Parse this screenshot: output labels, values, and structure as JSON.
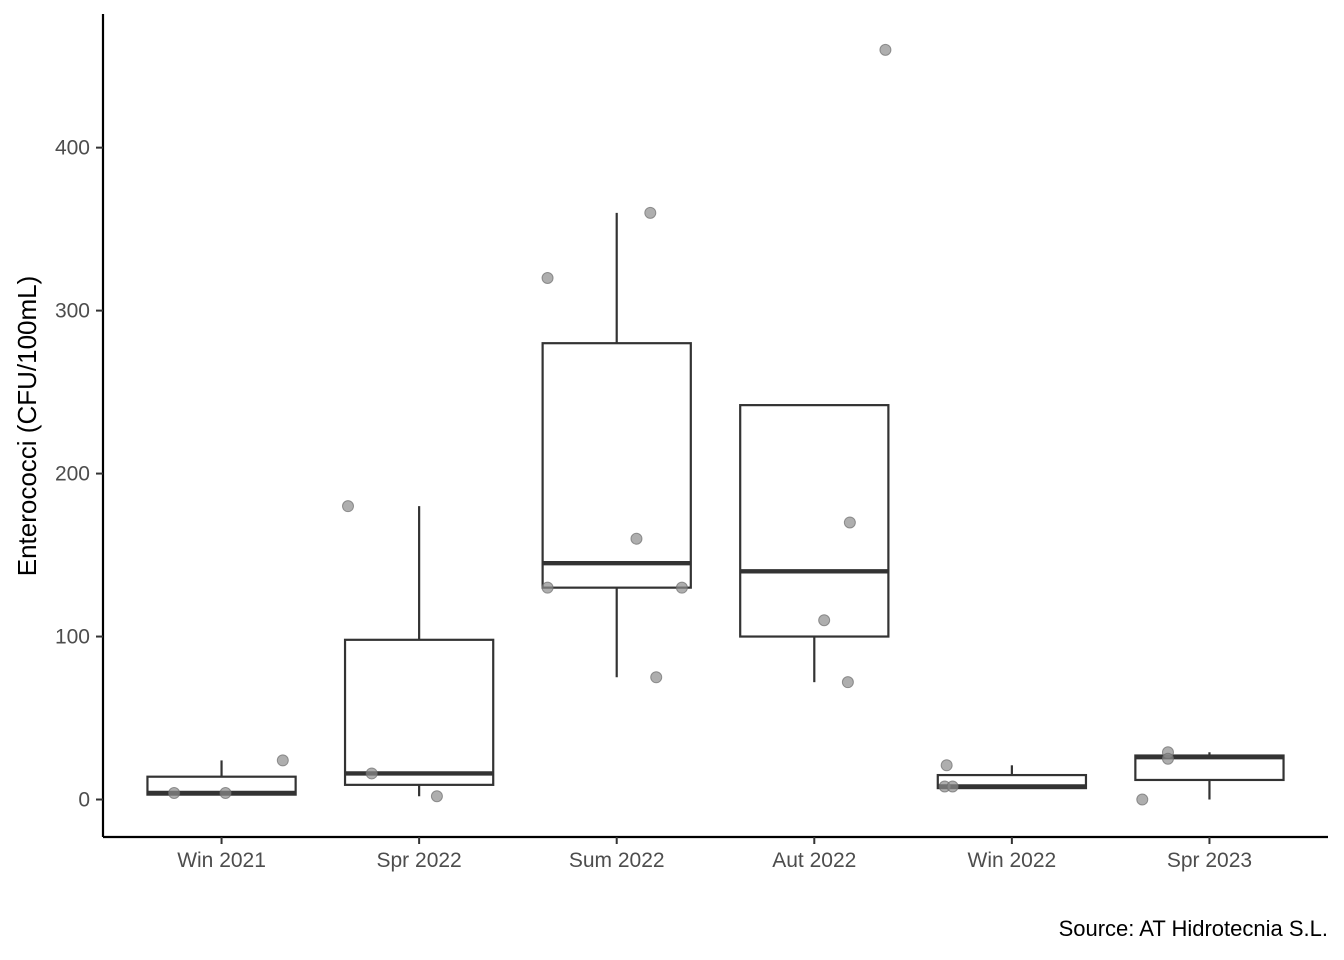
{
  "chart_data": {
    "type": "boxplot",
    "title": "",
    "xlabel": "",
    "ylabel": "Enterococci (CFU/100mL)",
    "ylim": [
      -23,
      482
    ],
    "yticks": [
      0,
      100,
      200,
      300,
      400
    ],
    "grid": false,
    "legend": "none",
    "categories": [
      "Win 2021",
      "Spr 2022",
      "Sum 2022",
      "Aut 2022",
      "Win 2022",
      "Spr 2023"
    ],
    "boxes": [
      {
        "category": "Win 2021",
        "whisker_low": 3,
        "q1": 3,
        "median": 4,
        "q3": 14,
        "whisker_high": 24
      },
      {
        "category": "Spr 2022",
        "whisker_low": 2,
        "q1": 9,
        "median": 16,
        "q3": 98,
        "whisker_high": 180
      },
      {
        "category": "Sum 2022",
        "whisker_low": 75,
        "q1": 130,
        "median": 145,
        "q3": 280,
        "whisker_high": 360
      },
      {
        "category": "Aut 2022",
        "whisker_low": 72,
        "q1": 100,
        "median": 140,
        "q3": 242,
        "whisker_high": 242
      },
      {
        "category": "Win 2022",
        "whisker_low": 7,
        "q1": 7,
        "median": 8,
        "q3": 15,
        "whisker_high": 21
      },
      {
        "category": "Spr 2023",
        "whisker_low": 0,
        "q1": 12,
        "median": 26,
        "q3": 27,
        "whisker_high": 29
      }
    ],
    "points": [
      {
        "category": "Win 2021",
        "y": 4
      },
      {
        "category": "Win 2021",
        "y": 4
      },
      {
        "category": "Win 2021",
        "y": 24
      },
      {
        "category": "Spr 2022",
        "y": 180
      },
      {
        "category": "Spr 2022",
        "y": 16
      },
      {
        "category": "Spr 2022",
        "y": 2
      },
      {
        "category": "Sum 2022",
        "y": 320
      },
      {
        "category": "Sum 2022",
        "y": 360
      },
      {
        "category": "Sum 2022",
        "y": 160
      },
      {
        "category": "Sum 2022",
        "y": 130
      },
      {
        "category": "Sum 2022",
        "y": 130
      },
      {
        "category": "Sum 2022",
        "y": 75
      },
      {
        "category": "Aut 2022",
        "y": 460
      },
      {
        "category": "Aut 2022",
        "y": 170
      },
      {
        "category": "Aut 2022",
        "y": 110
      },
      {
        "category": "Aut 2022",
        "y": 72
      },
      {
        "category": "Win 2022",
        "y": 21
      },
      {
        "category": "Win 2022",
        "y": 8
      },
      {
        "category": "Win 2022",
        "y": 8
      },
      {
        "category": "Spr 2023",
        "y": 29
      },
      {
        "category": "Spr 2023",
        "y": 25
      },
      {
        "category": "Spr 2023",
        "y": 0
      }
    ],
    "colors": {
      "box_stroke": "#333333",
      "box_fill": "#ffffff",
      "point": "#8c8c8c",
      "axis": "#000000",
      "tick_text": "#4d4d4d"
    }
  },
  "caption": "Source: AT Hidrotecnia S.L."
}
